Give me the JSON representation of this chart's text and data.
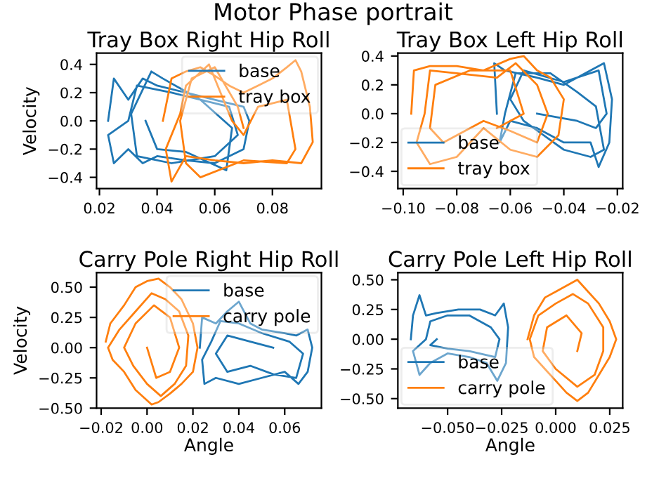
{
  "chart_data": [
    {
      "type": "line",
      "title": "Tray Box Right Hip Roll",
      "ylabel": "Velocity",
      "annotations": [
        "Motor Phase portrait"
      ],
      "xlim": [
        0.019,
        0.097
      ],
      "xticks": [
        0.02,
        0.04,
        0.06,
        0.08
      ],
      "ylim": [
        -0.48,
        0.48
      ],
      "yticks": [
        {
          "value": -0.4,
          "label": "−0.4"
        },
        {
          "value": -0.2,
          "label": "−0.2"
        },
        {
          "value": 0,
          "label": "0.0"
        },
        0.2,
        0.4
      ],
      "legend": "top right",
      "series": [
        {
          "name": "base",
          "color": "#1f77b4",
          "x": [
            0.023,
            0.025,
            0.03,
            0.035,
            0.04,
            0.05,
            0.06,
            0.07,
            0.072,
            0.07,
            0.06,
            0.05,
            0.04,
            0.035,
            0.03,
            0.025,
            0.023,
            0.03,
            0.033,
            0.045,
            0.065,
            0.068,
            0.06,
            0.045,
            0.033,
            0.031,
            0.038,
            0.042,
            0.055,
            0.066,
            0.064,
            0.05,
            0.04,
            0.036
          ],
          "values": [
            0.0,
            0.3,
            0.15,
            0.3,
            0.25,
            0.2,
            0.15,
            0.1,
            0.0,
            -0.2,
            -0.3,
            -0.28,
            -0.25,
            -0.3,
            -0.2,
            -0.3,
            -0.1,
            0.0,
            0.25,
            0.2,
            0.1,
            -0.1,
            -0.25,
            -0.3,
            -0.25,
            0.05,
            0.35,
            0.3,
            0.15,
            -0.05,
            -0.35,
            -0.22,
            -0.2,
            0.0
          ]
        },
        {
          "name": "tray box",
          "color": "#ff7f0e",
          "x": [
            0.042,
            0.045,
            0.05,
            0.055,
            0.06,
            0.065,
            0.07,
            0.075,
            0.08,
            0.085,
            0.088,
            0.09,
            0.093,
            0.094,
            0.09,
            0.08,
            0.07,
            0.06,
            0.05,
            0.045,
            0.043,
            0.048,
            0.05,
            0.058,
            0.062,
            0.066,
            0.07,
            0.075,
            0.085,
            0.088,
            0.085,
            0.07,
            0.055,
            0.05,
            0.048,
            0.052,
            0.06,
            0.068,
            0.07
          ],
          "values": [
            0.0,
            0.3,
            0.35,
            0.38,
            0.32,
            0.25,
            0.2,
            0.25,
            0.3,
            0.38,
            0.43,
            0.35,
            0.1,
            -0.15,
            -0.3,
            -0.28,
            -0.3,
            -0.28,
            -0.25,
            -0.43,
            -0.2,
            0.05,
            0.25,
            0.4,
            0.2,
            0.0,
            -0.1,
            0.1,
            0.15,
            -0.2,
            -0.3,
            -0.28,
            -0.4,
            -0.3,
            0.0,
            0.3,
            0.38,
            0.1,
            -0.05
          ]
        }
      ]
    },
    {
      "type": "line",
      "title": "Tray Box Left Hip Roll",
      "xlim": [
        -0.102,
        -0.018
      ],
      "xticks": [
        {
          "value": -0.1,
          "label": "−0.10"
        },
        {
          "value": -0.08,
          "label": "−0.08"
        },
        {
          "value": -0.06,
          "label": "−0.06"
        },
        {
          "value": -0.04,
          "label": "−0.04"
        },
        {
          "value": -0.02,
          "label": "−0.02"
        }
      ],
      "ylim": [
        -0.52,
        0.42
      ],
      "yticks": [
        {
          "value": -0.4,
          "label": "−0.4"
        },
        {
          "value": -0.2,
          "label": "−0.2"
        },
        {
          "value": 0,
          "label": "0.0"
        },
        0.2,
        0.4
      ],
      "legend": "bottom left",
      "series": [
        {
          "name": "base",
          "color": "#1f77b4",
          "x": [
            -0.065,
            -0.066,
            -0.062,
            -0.05,
            -0.04,
            -0.03,
            -0.025,
            -0.022,
            -0.023,
            -0.027,
            -0.03,
            -0.04,
            -0.05,
            -0.06,
            -0.064,
            -0.062,
            -0.058,
            -0.045,
            -0.035,
            -0.028,
            -0.025,
            -0.03,
            -0.04,
            -0.055,
            -0.06,
            -0.055,
            -0.04,
            -0.027,
            -0.024,
            -0.028,
            -0.035,
            -0.05
          ],
          "values": [
            0.0,
            0.35,
            0.3,
            0.25,
            0.2,
            0.3,
            0.35,
            0.1,
            -0.2,
            -0.37,
            -0.2,
            -0.2,
            -0.1,
            -0.05,
            -0.2,
            0.0,
            0.28,
            0.28,
            0.15,
            0.05,
            -0.25,
            -0.3,
            -0.25,
            -0.05,
            0.1,
            0.3,
            0.22,
            0.3,
            0.0,
            -0.1,
            -0.05,
            0.0
          ]
        },
        {
          "name": "tray box",
          "color": "#ff7f0e",
          "x": [
            -0.097,
            -0.096,
            -0.09,
            -0.08,
            -0.07,
            -0.06,
            -0.055,
            -0.05,
            -0.045,
            -0.04,
            -0.042,
            -0.05,
            -0.06,
            -0.07,
            -0.08,
            -0.09,
            -0.095,
            -0.092,
            -0.09,
            -0.08,
            -0.065,
            -0.058,
            -0.05,
            -0.046,
            -0.05,
            -0.06,
            -0.07,
            -0.085,
            -0.09,
            -0.088,
            -0.075,
            -0.06,
            -0.055,
            -0.065
          ],
          "values": [
            0.0,
            0.3,
            0.33,
            0.33,
            0.3,
            0.38,
            0.4,
            0.3,
            0.25,
            0.1,
            -0.15,
            -0.3,
            -0.25,
            -0.1,
            -0.3,
            -0.35,
            -0.2,
            0.0,
            0.3,
            0.28,
            0.25,
            0.35,
            0.2,
            0.0,
            -0.2,
            -0.12,
            -0.05,
            -0.2,
            -0.1,
            0.2,
            0.3,
            0.3,
            0.0,
            -0.1
          ]
        }
      ]
    },
    {
      "type": "line",
      "title": "Carry Pole Right Hip Roll",
      "xlabel": "Angle",
      "ylabel": "Velocity",
      "xlim": [
        -0.022,
        0.076
      ],
      "xticks": [
        {
          "value": -0.02,
          "label": "−0.02"
        },
        {
          "value": 0,
          "label": "0.00"
        },
        0.02,
        0.04,
        0.06
      ],
      "ylim": [
        -0.5,
        0.62
      ],
      "yticks": [
        {
          "value": -0.5,
          "label": "−0.50"
        },
        {
          "value": -0.25,
          "label": "−0.25"
        },
        {
          "value": 0,
          "label": "0.00"
        },
        0.25,
        {
          "value": 0.5,
          "label": "0.50"
        }
      ],
      "legend": "top right",
      "series": [
        {
          "name": "base",
          "color": "#1f77b4",
          "x": [
            0.023,
            0.024,
            0.03,
            0.035,
            0.04,
            0.045,
            0.05,
            0.06,
            0.065,
            0.07,
            0.072,
            0.07,
            0.066,
            0.06,
            0.05,
            0.04,
            0.03,
            0.025,
            0.024,
            0.028,
            0.032,
            0.04,
            0.05,
            0.062,
            0.068,
            0.065,
            0.055,
            0.045,
            0.035,
            0.03,
            0.035,
            0.045,
            0.055
          ],
          "values": [
            0.0,
            0.25,
            0.2,
            0.3,
            0.38,
            0.2,
            0.15,
            0.12,
            0.1,
            0.15,
            0.0,
            -0.2,
            -0.3,
            -0.2,
            -0.25,
            -0.3,
            -0.25,
            -0.3,
            -0.1,
            0.05,
            0.22,
            0.2,
            0.12,
            0.05,
            -0.05,
            -0.25,
            -0.22,
            -0.15,
            -0.2,
            -0.05,
            0.1,
            0.05,
            0.0
          ]
        },
        {
          "name": "carry pole",
          "color": "#ff7f0e",
          "x": [
            -0.018,
            -0.016,
            -0.01,
            -0.005,
            0.0,
            0.005,
            0.01,
            0.015,
            0.02,
            0.022,
            0.02,
            0.015,
            0.01,
            0.005,
            0.002,
            -0.005,
            -0.01,
            -0.015,
            -0.017,
            -0.012,
            -0.005,
            0.002,
            0.008,
            0.014,
            0.018,
            0.017,
            0.012,
            0.006,
            0.0,
            -0.006,
            -0.01,
            -0.005,
            0.003,
            0.01,
            0.014,
            0.01,
            0.004,
            0.0
          ],
          "values": [
            0.05,
            0.2,
            0.35,
            0.5,
            0.55,
            0.57,
            0.5,
            0.4,
            0.2,
            0.0,
            -0.2,
            -0.3,
            -0.38,
            -0.45,
            -0.47,
            -0.35,
            -0.2,
            -0.1,
            0.0,
            0.15,
            0.3,
            0.45,
            0.4,
            0.3,
            0.1,
            -0.15,
            -0.3,
            -0.4,
            -0.3,
            -0.15,
            0.0,
            0.2,
            0.35,
            0.25,
            0.0,
            -0.2,
            -0.25,
            0.0
          ]
        }
      ]
    },
    {
      "type": "line",
      "title": "Carry Pole Left Hip Roll",
      "xlabel": "Angle",
      "xlim": [
        -0.073,
        0.031
      ],
      "xticks": [
        {
          "value": -0.05,
          "label": "−0.050"
        },
        {
          "value": -0.025,
          "label": "−0.025"
        },
        {
          "value": 0,
          "label": "0.000"
        },
        0.025
      ],
      "ylim": [
        -0.58,
        0.56
      ],
      "yticks": [
        {
          "value": -0.5,
          "label": "−0.50"
        },
        {
          "value": -0.25,
          "label": "−0.25"
        },
        {
          "value": 0,
          "label": "0.00"
        },
        0.25,
        {
          "value": 0.5,
          "label": "0.50"
        }
      ],
      "legend": "bottom left",
      "series": [
        {
          "name": "base",
          "color": "#1f77b4",
          "x": [
            -0.067,
            -0.066,
            -0.063,
            -0.06,
            -0.055,
            -0.045,
            -0.035,
            -0.028,
            -0.024,
            -0.022,
            -0.023,
            -0.027,
            -0.032,
            -0.04,
            -0.05,
            -0.058,
            -0.063,
            -0.066,
            -0.06,
            -0.058,
            -0.05,
            -0.04,
            -0.03,
            -0.026,
            -0.028,
            -0.04,
            -0.05,
            -0.058,
            -0.055
          ],
          "values": [
            0.0,
            0.2,
            0.37,
            0.2,
            0.22,
            0.25,
            0.25,
            0.2,
            0.3,
            0.1,
            -0.2,
            -0.35,
            -0.2,
            -0.15,
            -0.12,
            -0.2,
            -0.3,
            -0.1,
            0.0,
            0.15,
            0.2,
            0.2,
            0.1,
            0.0,
            -0.15,
            -0.1,
            -0.08,
            -0.05,
            0.0
          ]
        },
        {
          "name": "carry pole",
          "color": "#ff7f0e",
          "x": [
            -0.013,
            -0.01,
            -0.005,
            0.0,
            0.005,
            0.01,
            0.015,
            0.02,
            0.025,
            0.028,
            0.025,
            0.02,
            0.015,
            0.01,
            0.005,
            0.0,
            -0.005,
            -0.01,
            -0.012,
            -0.008,
            0.0,
            0.008,
            0.015,
            0.022,
            0.022,
            0.018,
            0.01,
            0.0,
            -0.006,
            -0.004,
            0.005,
            0.012,
            0.01
          ],
          "values": [
            0.0,
            0.2,
            0.35,
            0.4,
            0.45,
            0.5,
            0.4,
            0.3,
            0.15,
            0.0,
            -0.15,
            -0.3,
            -0.45,
            -0.52,
            -0.45,
            -0.35,
            -0.25,
            -0.15,
            0.0,
            0.2,
            0.3,
            0.38,
            0.3,
            0.1,
            -0.1,
            -0.3,
            -0.4,
            -0.25,
            -0.1,
            0.1,
            0.2,
            0.05,
            -0.1
          ]
        }
      ]
    }
  ]
}
